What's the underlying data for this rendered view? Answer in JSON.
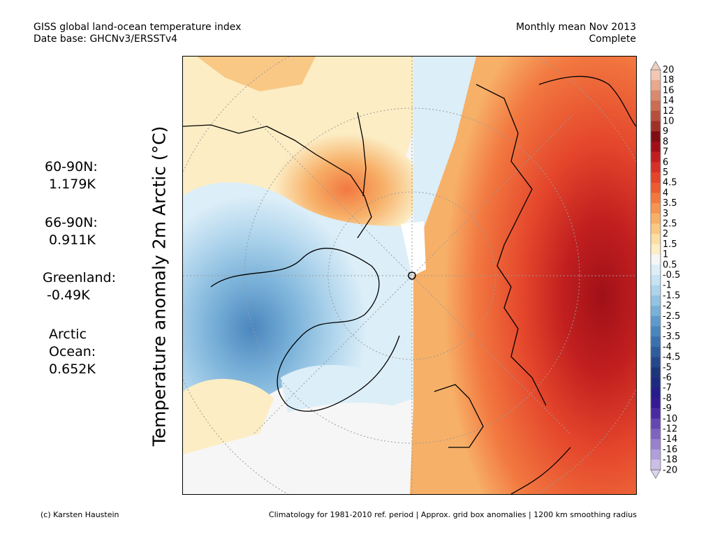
{
  "header": {
    "title": "GISS global land-ocean temperature index",
    "database": "Date base: GHCNv3/ERSSTv4",
    "period": "Monthly mean Nov 2013",
    "status": "Complete"
  },
  "y_label": "Temperature anomaly 2m Arctic (°C)",
  "stats": [
    {
      "lines": [
        "60-90N:",
        " 1.179K"
      ]
    },
    {
      "lines": [
        "66-90N:",
        " 0.911K"
      ]
    },
    {
      "lines": [
        "Greenland:",
        " -0.49K"
      ]
    },
    {
      "lines": [
        "Arctic",
        "Ocean:",
        "0.652K"
      ]
    }
  ],
  "colorbar": {
    "labels": [
      "20",
      "18",
      "16",
      "14",
      "12",
      "10",
      "9",
      "8",
      "7",
      "6",
      "5",
      "4.5",
      "4",
      "3.5",
      "3",
      "2.5",
      "2",
      "1.5",
      "1",
      "0.5",
      "-0.5",
      "-1",
      "-1.5",
      "-2",
      "-2.5",
      "-3",
      "-3.5",
      "-4",
      "-4.5",
      "-5",
      "-6",
      "-7",
      "-8",
      "-9",
      "-10",
      "-12",
      "-14",
      "-16",
      "-18",
      "-20"
    ],
    "colors": [
      "#f2c7b4",
      "#e8a88e",
      "#d98a6e",
      "#c96d53",
      "#b6503d",
      "#9e3227",
      "#7f0d13",
      "#a01018",
      "#c11f1f",
      "#d73027",
      "#e4452b",
      "#ec5c32",
      "#f27840",
      "#f59453",
      "#f7b068",
      "#f9c885",
      "#fbdea4",
      "#fcedc4",
      "#f6f6f6",
      "#dceef8",
      "#c7e3f3",
      "#aed4ec",
      "#93c3e2",
      "#78b0d8",
      "#5e9bcc",
      "#4a86be",
      "#3a70ae",
      "#2e5c9d",
      "#25488c",
      "#1d367b",
      "#1e2a80",
      "#261c8a",
      "#351a94",
      "#4a2aa0",
      "#6447b0",
      "#7e64c0",
      "#9881cd",
      "#b19fdb",
      "#cbbfe8"
    ],
    "max_color": "#eecfbf",
    "min_color": "#ddd4f2"
  },
  "footer": {
    "credit": "(c) Karsten Haustein",
    "note": "Climatology for 1981-2010 ref. period | Approx. grid box anomalies | 1200 km smoothing radius"
  }
}
